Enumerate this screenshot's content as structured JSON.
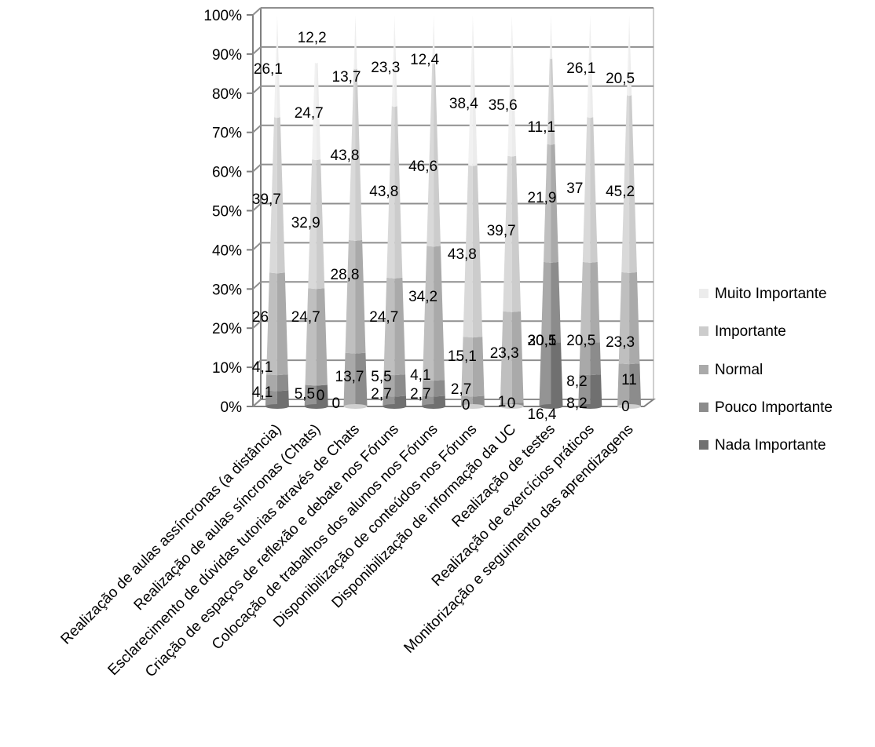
{
  "chart_data": {
    "type": "bar",
    "stacked": true,
    "percent": true,
    "shape": "cone-3d",
    "categories": [
      "Realização de aulas assíncronas (a distância)",
      "Realização de aulas síncronas (Chats)",
      "Esclarecimento de dúvidas tutorias através de Chats",
      "Criação de espaços de reflexão e debate nos Fóruns",
      "Colocação de trabalhos dos alunos nos Fóruns",
      "Disponibilização de conteúdos nos Fóruns",
      "Disponibilização de informação da UC",
      "Realização de testes",
      "Realização de exercícios práticos",
      "Monitorização e seguimento das aprendizagens"
    ],
    "series": [
      {
        "name": "Nada Importante",
        "color": "#707070",
        "values": [
          4.1,
          5.5,
          0,
          2.7,
          2.7,
          0,
          0,
          16.4,
          8.2,
          0
        ]
      },
      {
        "name": "Pouco Importante",
        "color": "#8c8c8c",
        "values": [
          4.1,
          0,
          13.7,
          5.5,
          4.1,
          2.7,
          1,
          20.5,
          8.2,
          11
        ]
      },
      {
        "name": "Normal",
        "color": "#aaaaaa",
        "values": [
          26,
          24.7,
          28.8,
          24.7,
          34.2,
          15.1,
          23.3,
          30.1,
          20.5,
          23.3
        ]
      },
      {
        "name": "Importante",
        "color": "#cccccc",
        "values": [
          39.7,
          32.9,
          43.8,
          43.8,
          46.6,
          43.8,
          39.7,
          21.9,
          37,
          45.2
        ]
      },
      {
        "name": "Muito Importante",
        "color": "#ececec",
        "values": [
          26.1,
          24.7,
          13.7,
          23.3,
          12.4,
          38.4,
          35.6,
          11.1,
          26.1,
          20.5
        ]
      }
    ],
    "top_labels": [
      "",
      "12,2",
      "",
      "",
      "",
      "",
      "",
      "",
      "",
      ""
    ],
    "yticks": [
      "0%",
      "10%",
      "20%",
      "30%",
      "40%",
      "50%",
      "60%",
      "70%",
      "80%",
      "90%",
      "100%"
    ],
    "ylim": [
      0,
      100
    ],
    "legend_position": "right",
    "legend_order": [
      "Muito Importante",
      "Importante",
      "Normal",
      "Pouco Importante",
      "Nada Importante"
    ],
    "grid": true
  }
}
